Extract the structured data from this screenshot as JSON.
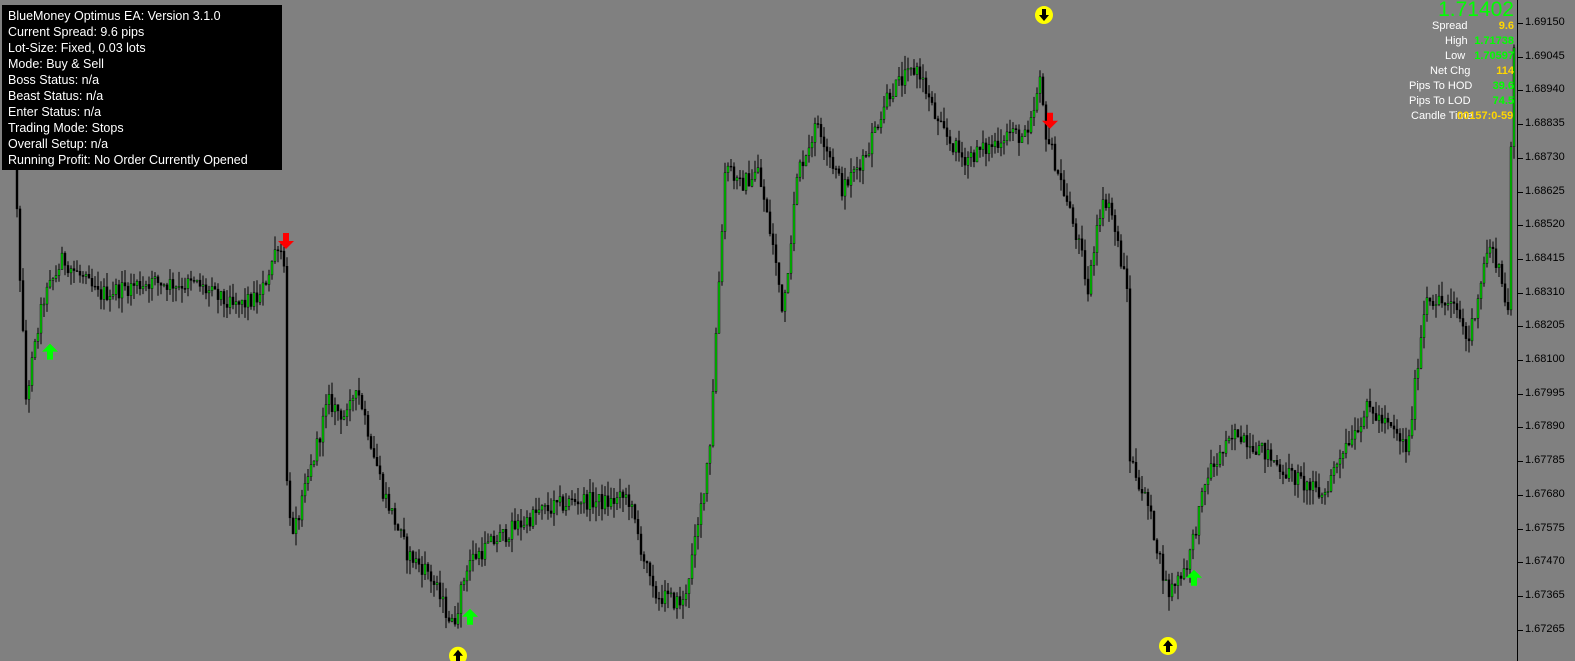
{
  "info_panel": {
    "lines": [
      "BlueMoney Optimus EA: Version 3.1.0",
      "Current Spread: 9.6 pips",
      "Lot-Size: Fixed, 0.03 lots",
      "Mode: Buy & Sell",
      "Boss Status: n/a",
      "Beast Status: n/a",
      "Enter Status: n/a",
      "Trading Mode: Stops",
      "Overall Setup: n/a",
      "Running Profit: No Order Currently Opened"
    ]
  },
  "stats_panel": {
    "current_price": "1.71402",
    "rows": [
      {
        "label": "Spread",
        "value": "9.6",
        "color": "yellow"
      },
      {
        "label": "High",
        "value": "1.71738",
        "color": "green"
      },
      {
        "label": "Low",
        "value": "1.70597",
        "color": "green"
      },
      {
        "label": "Net Chg",
        "value": "114",
        "color": "yellow"
      },
      {
        "label": "Pips To HOD",
        "value": "39.6",
        "color": "green"
      },
      {
        "label": "Pips To LOD",
        "value": "74.5",
        "color": "green"
      },
      {
        "label": "Candle Time",
        "value": "00157:0-59",
        "color": "yellow"
      }
    ]
  },
  "price_axis": {
    "labels": [
      "1.69150",
      "1.69045",
      "1.68940",
      "1.68835",
      "1.68730",
      "1.68625",
      "1.68520",
      "1.68415",
      "1.68310",
      "1.68205",
      "1.68100",
      "1.67995",
      "1.67890",
      "1.67785",
      "1.67680",
      "1.67575",
      "1.67470",
      "1.67365",
      "1.67265"
    ]
  },
  "chart_data": {
    "type": "candlestick",
    "ylim": [
      1.6718,
      1.692
    ],
    "up_color": "#00cc00",
    "down_color": "#000000",
    "wick_color": "#000000",
    "breakpoints": [
      [
        0,
        1.6893
      ],
      [
        15,
        1.688
      ],
      [
        28,
        1.6798
      ],
      [
        45,
        1.6828
      ],
      [
        65,
        1.6841
      ],
      [
        100,
        1.683
      ],
      [
        150,
        1.6834
      ],
      [
        200,
        1.6833
      ],
      [
        235,
        1.6826
      ],
      [
        262,
        1.6829
      ],
      [
        280,
        1.6846
      ],
      [
        287,
        1.684
      ],
      [
        289,
        1.6772
      ],
      [
        295,
        1.6755
      ],
      [
        330,
        1.6797
      ],
      [
        350,
        1.6792
      ],
      [
        358,
        1.6803
      ],
      [
        365,
        1.6795
      ],
      [
        385,
        1.677
      ],
      [
        410,
        1.675
      ],
      [
        430,
        1.6745
      ],
      [
        455,
        1.6728
      ],
      [
        470,
        1.6748
      ],
      [
        500,
        1.6755
      ],
      [
        540,
        1.6763
      ],
      [
        580,
        1.6767
      ],
      [
        610,
        1.6766
      ],
      [
        630,
        1.6768
      ],
      [
        655,
        1.6738
      ],
      [
        685,
        1.6735
      ],
      [
        700,
        1.6758
      ],
      [
        712,
        1.6785
      ],
      [
        722,
        1.684
      ],
      [
        728,
        1.6873
      ],
      [
        740,
        1.6863
      ],
      [
        760,
        1.6868
      ],
      [
        775,
        1.6845
      ],
      [
        785,
        1.6825
      ],
      [
        800,
        1.6868
      ],
      [
        820,
        1.6883
      ],
      [
        845,
        1.6862
      ],
      [
        870,
        1.6875
      ],
      [
        890,
        1.6892
      ],
      [
        920,
        1.69
      ],
      [
        940,
        1.6882
      ],
      [
        965,
        1.6872
      ],
      [
        990,
        1.6875
      ],
      [
        1010,
        1.688
      ],
      [
        1030,
        1.6878
      ],
      [
        1042,
        1.6895
      ],
      [
        1048,
        1.688
      ],
      [
        1060,
        1.6868
      ],
      [
        1075,
        1.6852
      ],
      [
        1085,
        1.684
      ],
      [
        1090,
        1.683
      ],
      [
        1100,
        1.6855
      ],
      [
        1110,
        1.686
      ],
      [
        1130,
        1.683
      ],
      [
        1132,
        1.678
      ],
      [
        1150,
        1.6765
      ],
      [
        1170,
        1.6738
      ],
      [
        1190,
        1.6748
      ],
      [
        1210,
        1.6775
      ],
      [
        1240,
        1.6788
      ],
      [
        1260,
        1.6783
      ],
      [
        1290,
        1.6775
      ],
      [
        1325,
        1.6768
      ],
      [
        1345,
        1.6783
      ],
      [
        1370,
        1.6795
      ],
      [
        1395,
        1.6788
      ],
      [
        1410,
        1.6782
      ],
      [
        1420,
        1.681
      ],
      [
        1428,
        1.683
      ],
      [
        1440,
        1.6828
      ],
      [
        1460,
        1.6825
      ],
      [
        1470,
        1.6815
      ],
      [
        1490,
        1.6845
      ],
      [
        1500,
        1.684
      ],
      [
        1510,
        1.6825
      ],
      [
        1515,
        1.6905
      ]
    ],
    "candle_start_x": 4,
    "candle_end_x": 1515,
    "candle_step": 3,
    "arrows": [
      {
        "x": 50,
        "price": 1.68125,
        "type": "up",
        "color": "#00ff00"
      },
      {
        "x": 286,
        "price": 1.68465,
        "type": "down",
        "color": "#ff0000"
      },
      {
        "x": 470,
        "price": 1.6731,
        "type": "up",
        "color": "#00ff00"
      },
      {
        "x": 1050,
        "price": 1.68835,
        "type": "down",
        "color": "#ff0000"
      },
      {
        "x": 1194,
        "price": 1.6743,
        "type": "up",
        "color": "#00ff00"
      }
    ],
    "circle_markers": [
      {
        "x": 1044,
        "price": 1.6916,
        "type": "down"
      },
      {
        "x": 458,
        "price": 1.6719,
        "type": "up"
      },
      {
        "x": 1168,
        "price": 1.6722,
        "type": "up"
      }
    ]
  }
}
